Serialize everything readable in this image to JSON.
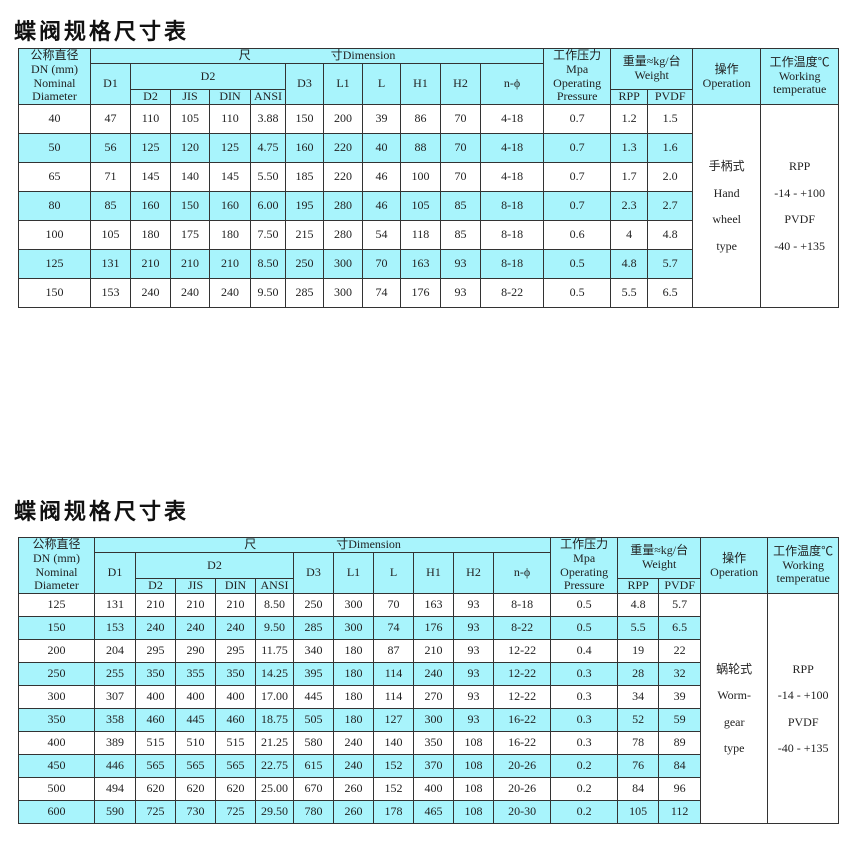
{
  "tables": [
    {
      "title": "蝶阀规格尺寸表",
      "header": {
        "dn": [
          "公称直径",
          "DN (mm)",
          "Nominal",
          "Diameter"
        ],
        "dimension": [
          "尺",
          "寸Dimension"
        ],
        "d1": "D1",
        "d2": "D2",
        "d2_sub": [
          "D2",
          "JIS",
          "DIN",
          "ANSI"
        ],
        "cols": [
          "D3",
          "L1",
          "L",
          "H1",
          "H2",
          "n-ϕ"
        ],
        "pressure": [
          "工作压力",
          "Mpa",
          "Operating",
          "Pressure"
        ],
        "weight": [
          "重量≈kg/台",
          "Weight"
        ],
        "weight_sub": [
          "RPP",
          "PVDF"
        ],
        "operation": [
          "操作",
          "Operation"
        ],
        "temperature": [
          "工作温度℃",
          "Working",
          "temperatue"
        ]
      },
      "operation": [
        "手柄式",
        "Hand",
        "wheel",
        "type"
      ],
      "temperature": [
        "RPP",
        "-14 - +100",
        "PVDF",
        "-40 - +135"
      ],
      "rows": [
        [
          "40",
          "47",
          "110",
          "105",
          "110",
          "3.88",
          "150",
          "200",
          "39",
          "86",
          "70",
          "4-18",
          "0.7",
          "1.2",
          "1.5"
        ],
        [
          "50",
          "56",
          "125",
          "120",
          "125",
          "4.75",
          "160",
          "220",
          "40",
          "88",
          "70",
          "4-18",
          "0.7",
          "1.3",
          "1.6"
        ],
        [
          "65",
          "71",
          "145",
          "140",
          "145",
          "5.50",
          "185",
          "220",
          "46",
          "100",
          "70",
          "4-18",
          "0.7",
          "1.7",
          "2.0"
        ],
        [
          "80",
          "85",
          "160",
          "150",
          "160",
          "6.00",
          "195",
          "280",
          "46",
          "105",
          "85",
          "8-18",
          "0.7",
          "2.3",
          "2.7"
        ],
        [
          "100",
          "105",
          "180",
          "175",
          "180",
          "7.50",
          "215",
          "280",
          "54",
          "118",
          "85",
          "8-18",
          "0.6",
          "4",
          "4.8"
        ],
        [
          "125",
          "131",
          "210",
          "210",
          "210",
          "8.50",
          "250",
          "300",
          "70",
          "163",
          "93",
          "8-18",
          "0.5",
          "4.8",
          "5.7"
        ],
        [
          "150",
          "153",
          "240",
          "240",
          "240",
          "9.50",
          "285",
          "300",
          "74",
          "176",
          "93",
          "8-22",
          "0.5",
          "5.5",
          "6.5"
        ]
      ]
    },
    {
      "title": "蝶阀规格尺寸表",
      "header": {
        "dn": [
          "公称直径",
          "DN (mm)",
          "Nominal",
          "Diameter"
        ],
        "dimension": [
          "尺",
          "寸Dimension"
        ],
        "d1": "D1",
        "d2": "D2",
        "d2_sub": [
          "D2",
          "JIS",
          "DIN",
          "ANSI"
        ],
        "cols": [
          "D3",
          "L1",
          "L",
          "H1",
          "H2",
          "n-ϕ"
        ],
        "pressure": [
          "工作压力",
          "Mpa",
          "Operating",
          "Pressure"
        ],
        "weight": [
          "重量≈kg/台",
          "Weight"
        ],
        "weight_sub": [
          "RPP",
          "PVDF"
        ],
        "operation": [
          "操作",
          "Operation"
        ],
        "temperature": [
          "工作温度℃",
          "Working",
          "temperatue"
        ]
      },
      "operation": [
        "蜗轮式",
        "Worm-",
        "gear",
        "type"
      ],
      "temperature": [
        "RPP",
        "-14 - +100",
        "PVDF",
        "-40 - +135"
      ],
      "rows": [
        [
          "125",
          "131",
          "210",
          "210",
          "210",
          "8.50",
          "250",
          "300",
          "70",
          "163",
          "93",
          "8-18",
          "0.5",
          "4.8",
          "5.7"
        ],
        [
          "150",
          "153",
          "240",
          "240",
          "240",
          "9.50",
          "285",
          "300",
          "74",
          "176",
          "93",
          "8-22",
          "0.5",
          "5.5",
          "6.5"
        ],
        [
          "200",
          "204",
          "295",
          "290",
          "295",
          "11.75",
          "340",
          "180",
          "87",
          "210",
          "93",
          "12-22",
          "0.4",
          "19",
          "22"
        ],
        [
          "250",
          "255",
          "350",
          "355",
          "350",
          "14.25",
          "395",
          "180",
          "114",
          "240",
          "93",
          "12-22",
          "0.3",
          "28",
          "32"
        ],
        [
          "300",
          "307",
          "400",
          "400",
          "400",
          "17.00",
          "445",
          "180",
          "114",
          "270",
          "93",
          "12-22",
          "0.3",
          "34",
          "39"
        ],
        [
          "350",
          "358",
          "460",
          "445",
          "460",
          "18.75",
          "505",
          "180",
          "127",
          "300",
          "93",
          "16-22",
          "0.3",
          "52",
          "59"
        ],
        [
          "400",
          "389",
          "515",
          "510",
          "515",
          "21.25",
          "580",
          "240",
          "140",
          "350",
          "108",
          "16-22",
          "0.3",
          "78",
          "89"
        ],
        [
          "450",
          "446",
          "565",
          "565",
          "565",
          "22.75",
          "615",
          "240",
          "152",
          "370",
          "108",
          "20-26",
          "0.2",
          "76",
          "84"
        ],
        [
          "500",
          "494",
          "620",
          "620",
          "620",
          "25.00",
          "670",
          "260",
          "152",
          "400",
          "108",
          "20-26",
          "0.2",
          "84",
          "96"
        ],
        [
          "600",
          "590",
          "725",
          "730",
          "725",
          "29.50",
          "780",
          "260",
          "178",
          "465",
          "108",
          "20-30",
          "0.2",
          "105",
          "112"
        ]
      ]
    }
  ],
  "colors": {
    "header_bg": "#a8f4fc",
    "row_alt_bg": "#a8f4fc"
  }
}
